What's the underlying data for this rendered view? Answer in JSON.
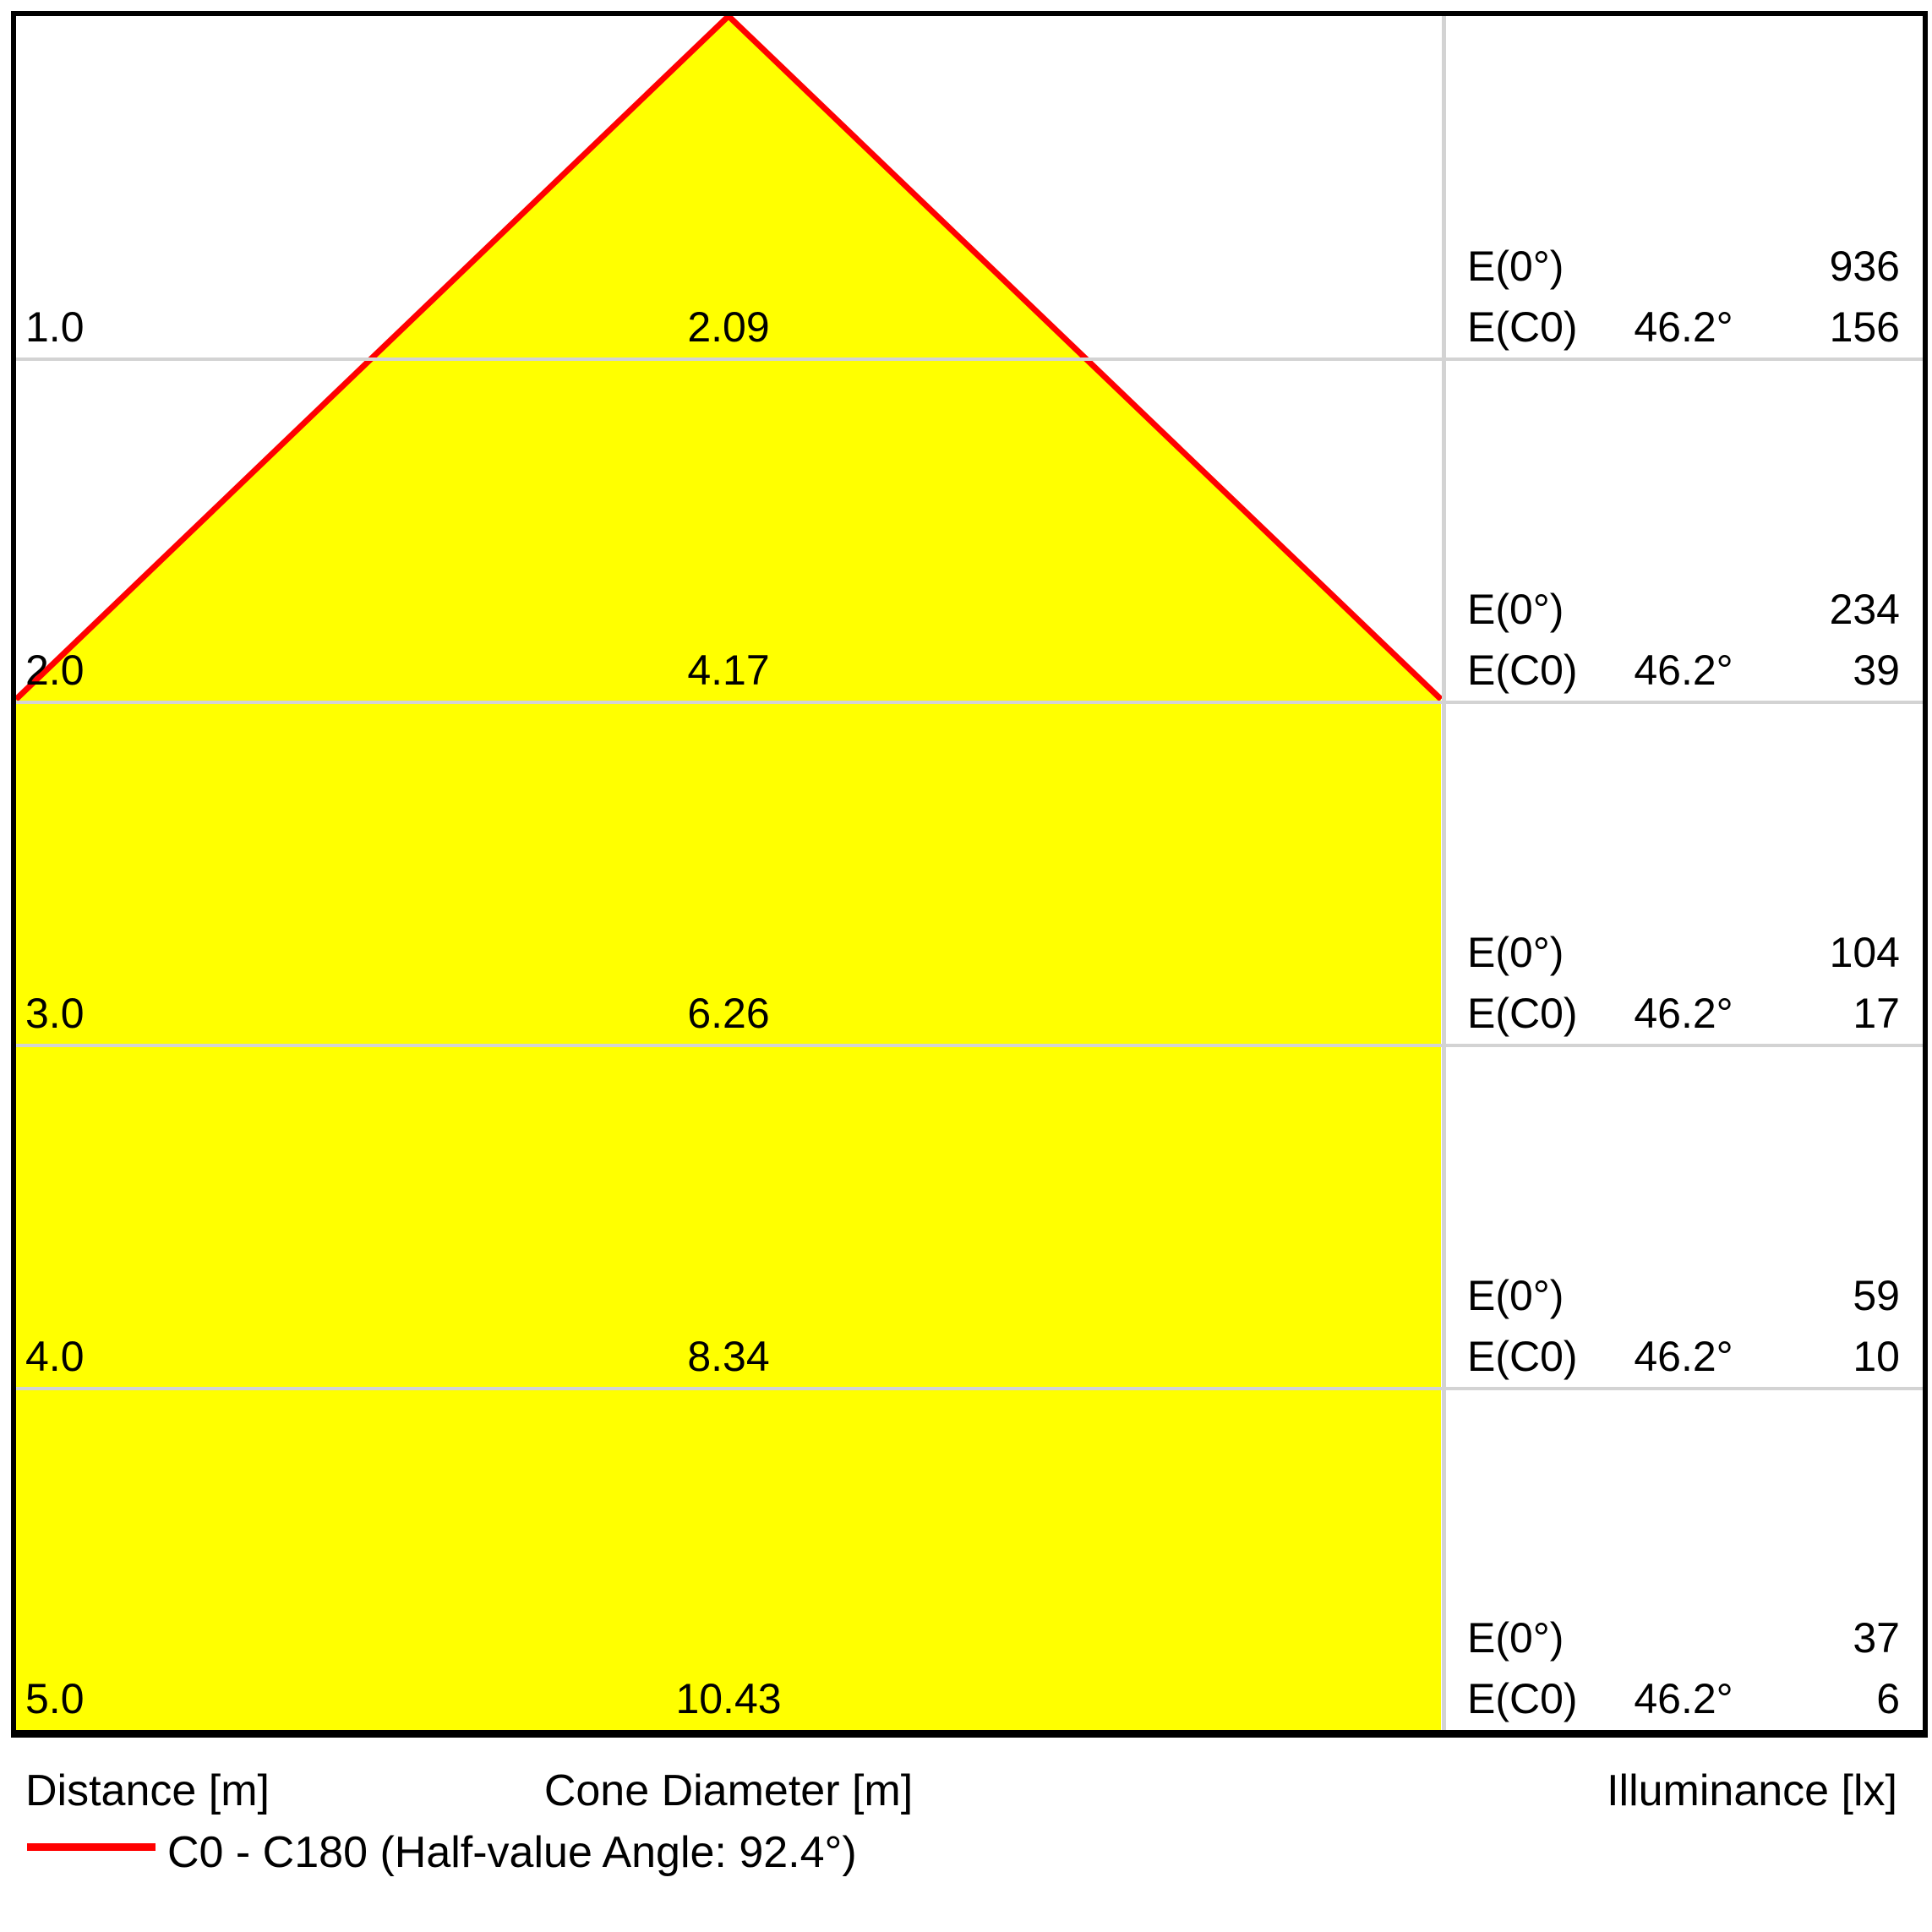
{
  "chart_data": {
    "type": "area",
    "title": "Light cone diagram (distance vs cone diameter with illuminance table)",
    "half_value_angle_deg": 92.4,
    "beam_half_angle_deg": 46.2,
    "distances_m": [
      1.0,
      2.0,
      3.0,
      4.0,
      5.0
    ],
    "cone_diameters_m": [
      2.09,
      4.17,
      6.26,
      8.34,
      10.43
    ],
    "illuminance_E0_lx": [
      936,
      234,
      104,
      59,
      37
    ],
    "illuminance_EC0_lx": [
      156,
      39,
      17,
      10,
      6
    ],
    "legend_position": "bottom-left",
    "grid": true,
    "rows": [
      {
        "distance": "1.0",
        "diameter": "2.09",
        "e0_value": "936",
        "ec0_angle": "46.2°",
        "ec0_value": "156"
      },
      {
        "distance": "2.0",
        "diameter": "4.17",
        "e0_value": "234",
        "ec0_angle": "46.2°",
        "ec0_value": "39"
      },
      {
        "distance": "3.0",
        "diameter": "6.26",
        "e0_value": "104",
        "ec0_angle": "46.2°",
        "ec0_value": "17"
      },
      {
        "distance": "4.0",
        "diameter": "8.34",
        "e0_value": "59",
        "ec0_angle": "46.2°",
        "ec0_value": "10"
      },
      {
        "distance": "5.0",
        "diameter": "10.43",
        "e0_value": "37",
        "ec0_angle": "46.2°",
        "ec0_value": "6"
      }
    ]
  },
  "labels": {
    "e0": "E(0°)",
    "ec0": "E(C0)"
  },
  "footer": {
    "distance_label": "Distance [m]",
    "cone_diameter_label": "Cone Diameter [m]",
    "illuminance_label": "Illuminance [lx]",
    "legend_label": "C0 - C180 (Half-value Angle: 92.4°)"
  },
  "colors": {
    "cone_fill": "#ffff00",
    "cone_edge": "#ff0000",
    "gridline": "#d3d3d3",
    "border": "#000000"
  }
}
